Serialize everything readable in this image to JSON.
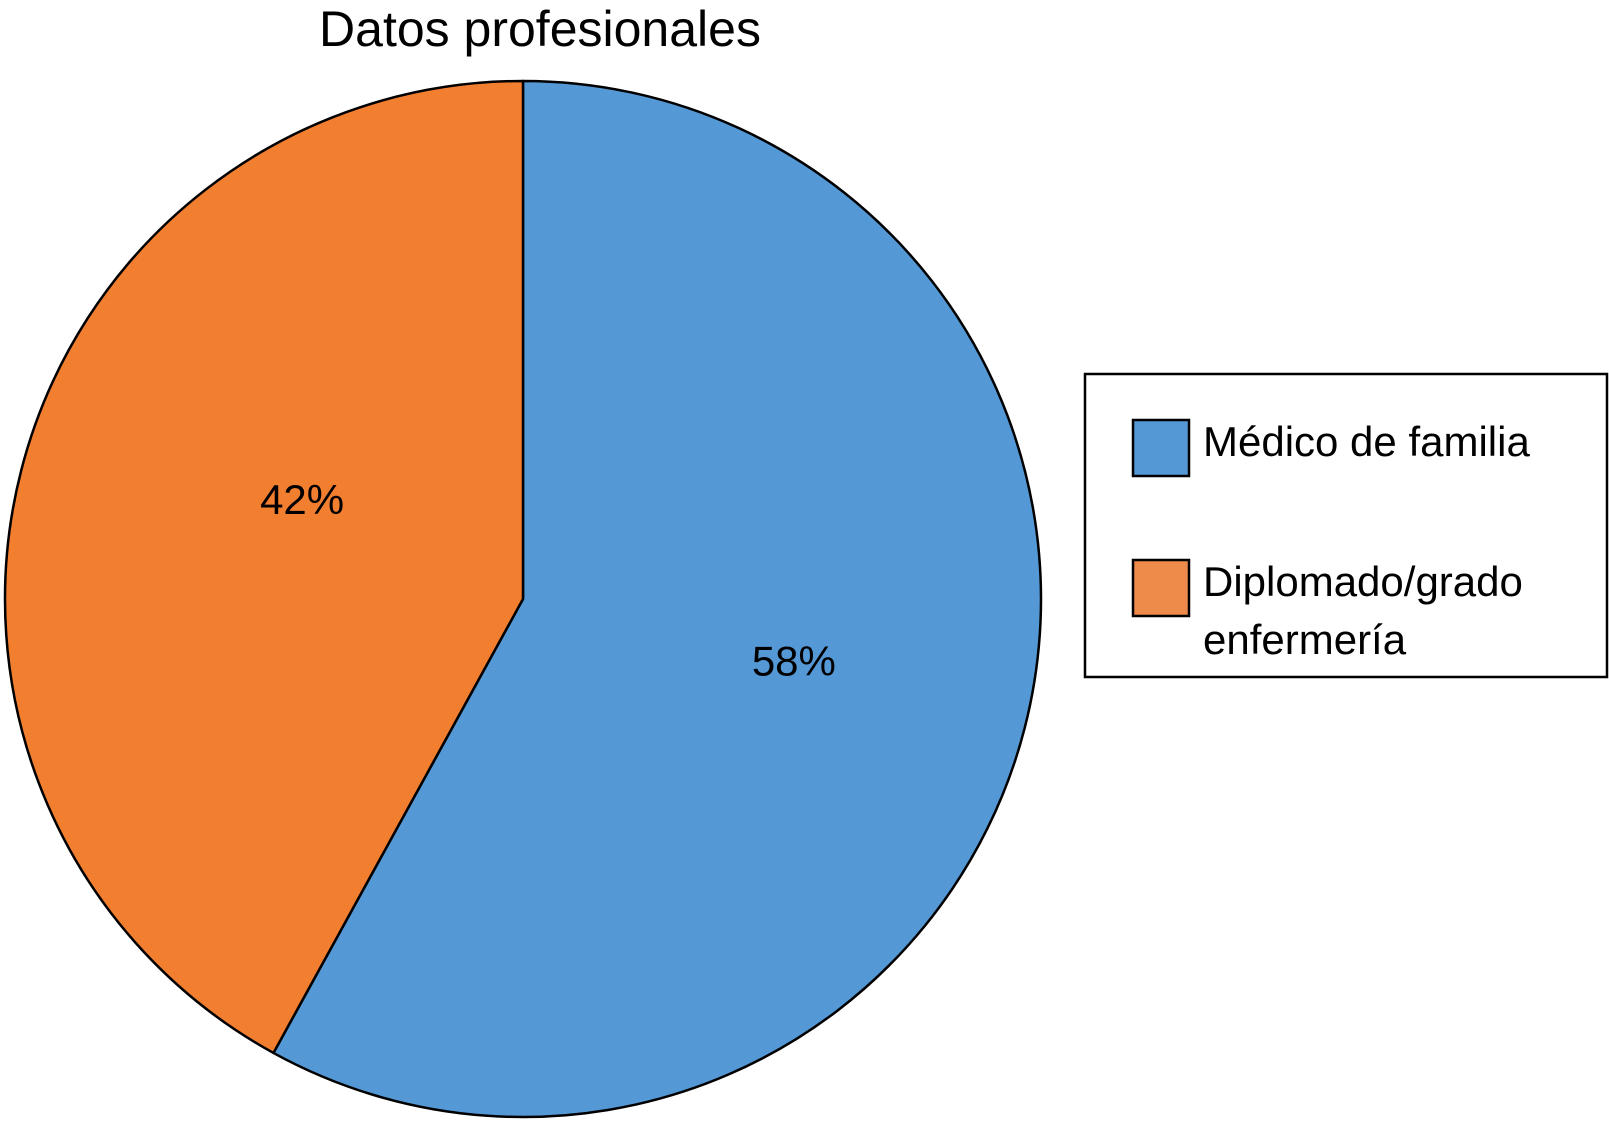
{
  "chart_data": {
    "type": "pie",
    "title": "Datos profesionales",
    "slices": [
      {
        "label": "Médico de familia",
        "value": 58,
        "display": "58%",
        "color": "#5499D6"
      },
      {
        "label": "Diplomado/grado enfermería",
        "value": 42,
        "display": "42%",
        "color": "#F27E30"
      }
    ],
    "legend": {
      "placement": "right",
      "entries": [
        {
          "lines": [
            "Médico de familia"
          ],
          "color": "#5499D6"
        },
        {
          "lines": [
            "Diplomado/grado",
            "enfermería"
          ],
          "color": "#EE8A4A"
        }
      ]
    }
  }
}
